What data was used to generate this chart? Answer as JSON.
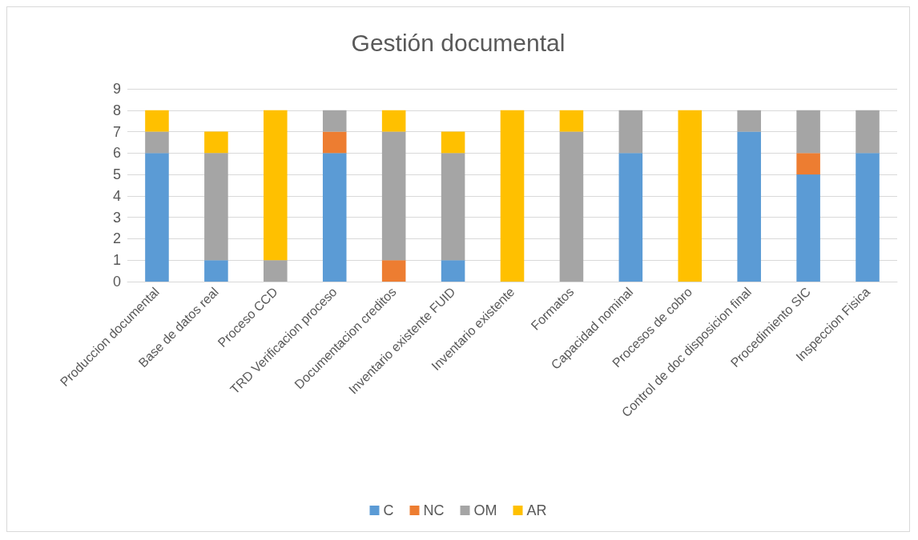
{
  "chart_data": {
    "type": "bar",
    "title": "Gestión documental",
    "stacked": true,
    "grid": "y",
    "legend": "bottom",
    "categories": [
      "Produccion documental",
      "Base de datos real",
      "Proceso CCD",
      "TRD Verificacion proceso",
      "Documentacion creditos",
      "Inventario existente FUID",
      "Inventario existente",
      "Formatos",
      "Capacidad nominal",
      "Procesos de cobro",
      "Control de doc disposicion final",
      "Procedimiento SIC",
      "Inspeccion Fisica"
    ],
    "ylim": [
      0,
      9
    ],
    "yticks": [
      0,
      1,
      2,
      3,
      4,
      5,
      6,
      7,
      8,
      9
    ],
    "series": [
      {
        "name": "C",
        "color": "#5b9bd5",
        "values": [
          6,
          1,
          0,
          6,
          0,
          1,
          0,
          0,
          6,
          0,
          7,
          5,
          6
        ]
      },
      {
        "name": "NC",
        "color": "#ed7d31",
        "values": [
          0,
          0,
          0,
          1,
          1,
          0,
          0,
          0,
          0,
          0,
          0,
          1,
          0
        ]
      },
      {
        "name": "OM",
        "color": "#a5a5a5",
        "values": [
          1,
          5,
          1,
          1,
          6,
          5,
          0,
          7,
          2,
          0,
          1,
          2,
          2
        ]
      },
      {
        "name": "AR",
        "color": "#ffc000",
        "values": [
          1,
          1,
          7,
          0,
          1,
          1,
          8,
          1,
          0,
          8,
          0,
          0,
          0
        ]
      }
    ]
  }
}
